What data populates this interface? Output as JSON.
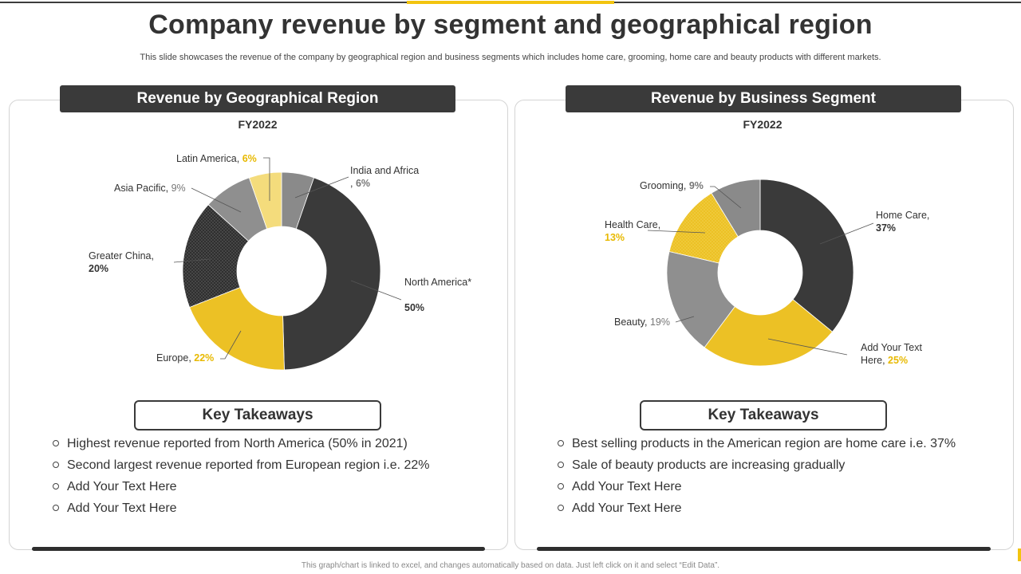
{
  "title": "Company revenue by segment and geographical region",
  "subtitle": "This slide showcases the revenue of the company by geographical region and business segments which includes home care, grooming, home care and beauty products with different markets.",
  "footer": "This graph/chart is linked to excel, and changes automatically based on data. Just left click on it and select “Edit Data”.",
  "colors": {
    "dark": "#3a3a3a",
    "yellow": "#ecc125",
    "gray": "#8a8a8a",
    "lightgray": "#8f8f8f",
    "paleyellow": "#f4dc7c"
  },
  "left_panel": {
    "header": "Revenue by Geographical Region",
    "year": "FY2022",
    "takeaways_title": "Key Takeaways",
    "takeaways": [
      "Highest revenue reported from North America (50% in 2021)",
      "Second largest revenue reported from European region i.e. 22%",
      "Add Your Text Here",
      "Add Your Text Here"
    ]
  },
  "right_panel": {
    "header": "Revenue by Business Segment",
    "year": "FY2022",
    "takeaways_title": "Key Takeaways",
    "takeaways": [
      "Best selling products in the American region are home care i.e. 37%",
      "Sale of beauty products are increasing gradually",
      "Add Your Text Here",
      "Add Your Text Here"
    ]
  },
  "chart_data": [
    {
      "type": "pie",
      "title": "FY2022",
      "categories": [
        "India and Africa",
        "North America*",
        "Europe",
        "Greater China",
        "Asia Pacific",
        "Latin America"
      ],
      "values": [
        6,
        50,
        22,
        20,
        9,
        6
      ],
      "value_labels": [
        "6%",
        "50%",
        "22%",
        "20%",
        "9%",
        "6%"
      ],
      "colors": [
        "#8a8a8a",
        "#3a3a3a",
        "#ecc125",
        "#3a3a3a",
        "#8f8f8f",
        "#f4dc7c"
      ]
    },
    {
      "type": "pie",
      "title": "FY2022",
      "categories": [
        "Home Care",
        "Add Your Text Here",
        "Beauty",
        "Health Care",
        "Grooming"
      ],
      "values": [
        37,
        25,
        19,
        13,
        9
      ],
      "value_labels": [
        "37%",
        "25%",
        "19%",
        "13%",
        "9%"
      ],
      "colors": [
        "#3a3a3a",
        "#ecc125",
        "#8f8f8f",
        "#ecc125",
        "#8a8a8a"
      ]
    }
  ]
}
